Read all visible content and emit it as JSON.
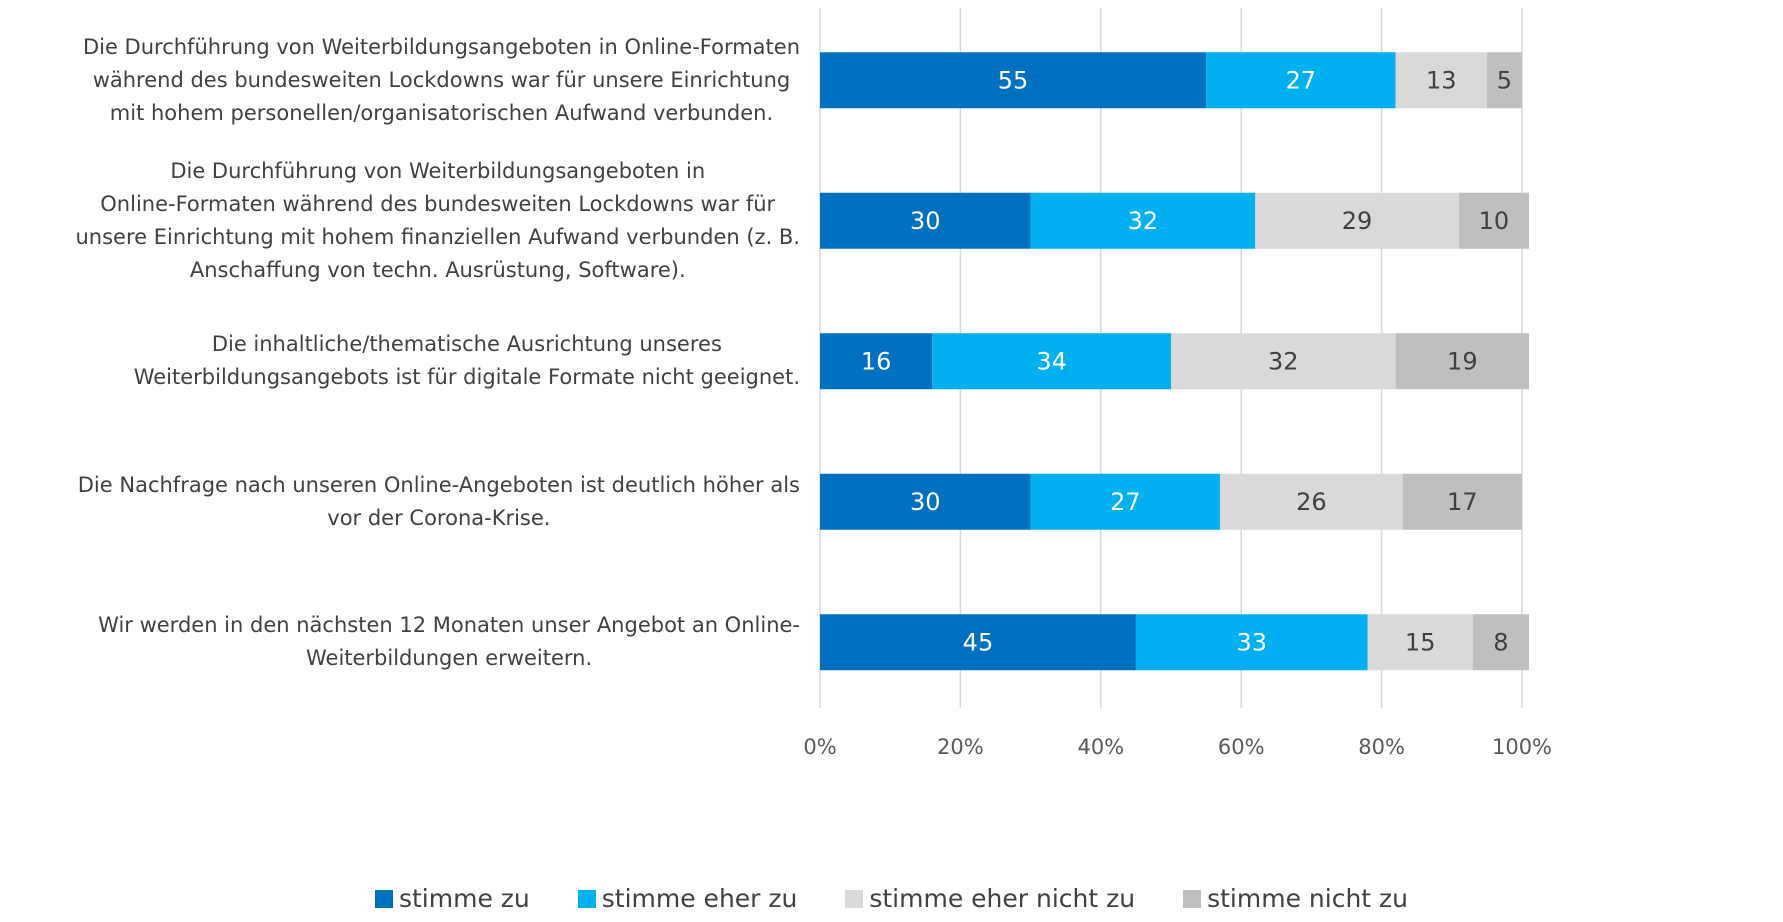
{
  "chart_data": {
    "type": "stacked_bar_horizontal",
    "categories": [
      "Die Durchführung von Weiterbildungsangeboten in Online-Formaten\nwährend des bundesweiten Lockdowns war für unsere Einrichtung\nmit hohem personellen/organisatorischen Aufwand verbunden.",
      "Die Durchführung von Weiterbildungsangeboten in\nOnline-Formaten während des bundesweiten Lockdowns war für\nunsere Einrichtung mit hohem finanziellen Aufwand verbunden (z. B.\nAnschaffung von techn. Ausrüstung, Software).",
      "Die inhaltliche/thematische Ausrichtung unseres\nWeiterbildungsangebots ist für digitale Formate nicht geeignet.",
      "Die Nachfrage nach unseren Online-Angeboten ist deutlich höher als\nvor der Corona-Krise.",
      "Wir werden in den nächsten 12 Monaten unser Angebot an Online-\nWeiterbildungen erweitern."
    ],
    "series": [
      {
        "name": "stimme zu",
        "color": "#0070c0",
        "label_color": "#ffffff",
        "values": [
          55,
          30,
          16,
          30,
          45
        ]
      },
      {
        "name": "stimme eher zu",
        "color": "#00b0f0",
        "label_color": "#ffffff",
        "values": [
          27,
          32,
          34,
          27,
          33
        ]
      },
      {
        "name": "stimme eher nicht zu",
        "color": "#d9d9d9",
        "label_color": "#404040",
        "values": [
          13,
          29,
          32,
          26,
          15
        ]
      },
      {
        "name": "stimme nicht zu",
        "color": "#bfbfbf",
        "label_color": "#404040",
        "values": [
          5,
          10,
          19,
          17,
          8
        ]
      }
    ],
    "xlim": [
      0,
      100
    ],
    "xticks": [
      {
        "value": 0,
        "label": "0%"
      },
      {
        "value": 20,
        "label": "20%"
      },
      {
        "value": 40,
        "label": "40%"
      },
      {
        "value": 60,
        "label": "60%"
      },
      {
        "value": 80,
        "label": "80%"
      },
      {
        "value": 100,
        "label": "100%"
      }
    ],
    "grid": true,
    "legend": "bottom"
  }
}
